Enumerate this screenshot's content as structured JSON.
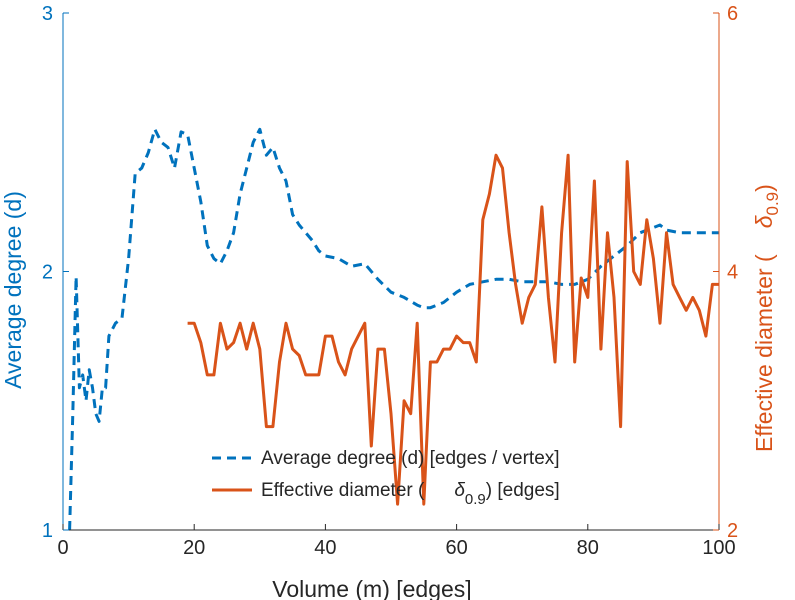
{
  "chart_data": {
    "type": "line",
    "xlabel": "Volume (m) [edges]",
    "ylabel_left": "Average degree (d)",
    "ylabel_right_prefix": "Effective diameter (",
    "ylabel_right_symbol": "δ",
    "ylabel_right_subscript": "0.9",
    "ylabel_right_suffix": ")",
    "xlim": [
      0,
      100
    ],
    "ylim_left": [
      1,
      3
    ],
    "ylim_right": [
      2,
      6
    ],
    "x_ticks": [
      "0",
      "20",
      "40",
      "60",
      "80",
      "100"
    ],
    "y_ticks_left": [
      "1",
      "2",
      "3"
    ],
    "y_ticks_right": [
      "2",
      "4",
      "6"
    ],
    "colors": {
      "left": "#0072bd",
      "right": "#d95319",
      "axis": "#262626"
    },
    "series": [
      {
        "name": "Average degree (d) [edges / vertex]",
        "axis": "left",
        "style": "dashed",
        "x": [
          1,
          1.5,
          2,
          2.5,
          3,
          3.5,
          4,
          4.5,
          5,
          5.5,
          6,
          6.5,
          7,
          8,
          9,
          10,
          11,
          12,
          13,
          14,
          15,
          16,
          17,
          18,
          19,
          20,
          21,
          22,
          23,
          24,
          25,
          26,
          27,
          28,
          29,
          30,
          31,
          32,
          33,
          34,
          35,
          36,
          37,
          38,
          39,
          40,
          42,
          44,
          46,
          48,
          50,
          52,
          54,
          55,
          56,
          57,
          58,
          59,
          60,
          62,
          64,
          66,
          68,
          70,
          72,
          74,
          76,
          78,
          80,
          82,
          84,
          86,
          88,
          90,
          91,
          92,
          94,
          96,
          98,
          100
        ],
        "values": [
          1,
          1.45,
          1.98,
          1.55,
          1.6,
          1.5,
          1.62,
          1.55,
          1.45,
          1.42,
          1.55,
          1.55,
          1.75,
          1.8,
          1.82,
          2.05,
          2.38,
          2.4,
          2.46,
          2.55,
          2.5,
          2.48,
          2.4,
          2.54,
          2.53,
          2.4,
          2.27,
          2.1,
          2.05,
          2.03,
          2.08,
          2.15,
          2.3,
          2.4,
          2.5,
          2.55,
          2.45,
          2.48,
          2.4,
          2.35,
          2.22,
          2.18,
          2.15,
          2.12,
          2.08,
          2.06,
          2.05,
          2.02,
          2.03,
          1.97,
          1.92,
          1.9,
          1.87,
          1.86,
          1.86,
          1.87,
          1.88,
          1.9,
          1.92,
          1.95,
          1.96,
          1.97,
          1.97,
          1.96,
          1.96,
          1.96,
          1.95,
          1.95,
          1.97,
          2.02,
          2.06,
          2.1,
          2.15,
          2.17,
          2.18,
          2.16,
          2.15,
          2.15,
          2.15,
          2.15
        ]
      },
      {
        "name": "Effective diameter (δ0.9) [edges]",
        "axis": "right",
        "style": "solid",
        "x": [
          19,
          20,
          21,
          22,
          23,
          24,
          25,
          26,
          27,
          28,
          29,
          30,
          31,
          32,
          33,
          34,
          35,
          36,
          37,
          38,
          39,
          40,
          41,
          42,
          43,
          44,
          45,
          46,
          47,
          48,
          49,
          50,
          51,
          52,
          53,
          54,
          55,
          56,
          57,
          58,
          59,
          60,
          61,
          62,
          63,
          64,
          65,
          66,
          67,
          68,
          69,
          70,
          71,
          72,
          73,
          74,
          75,
          76,
          77,
          78,
          79,
          80,
          81,
          82,
          83,
          84,
          85,
          86,
          87,
          88,
          89,
          90,
          91,
          92,
          93,
          94,
          95,
          96,
          97,
          98,
          99,
          100
        ],
        "values": [
          3.6,
          3.6,
          3.45,
          3.2,
          3.2,
          3.6,
          3.4,
          3.45,
          3.6,
          3.4,
          3.6,
          3.4,
          2.8,
          2.8,
          3.3,
          3.6,
          3.4,
          3.35,
          3.2,
          3.2,
          3.2,
          3.5,
          3.5,
          3.3,
          3.2,
          3.4,
          3.5,
          3.6,
          2.65,
          3.4,
          3.4,
          2.9,
          2.2,
          3.0,
          2.9,
          3.6,
          2.2,
          3.3,
          3.3,
          3.4,
          3.4,
          3.5,
          3.45,
          3.45,
          3.3,
          4.4,
          4.6,
          4.9,
          4.8,
          4.3,
          3.9,
          3.6,
          3.8,
          3.9,
          4.5,
          3.8,
          3.3,
          4.3,
          4.9,
          3.3,
          3.95,
          3.8,
          4.7,
          3.4,
          4.3,
          3.8,
          2.8,
          4.85,
          4.0,
          3.9,
          4.4,
          4.1,
          3.6,
          4.3,
          3.9,
          3.8,
          3.7,
          3.8,
          3.7,
          3.5,
          3.9,
          3.9
        ]
      }
    ],
    "legend": [
      {
        "label": "Average degree (d) [edges / vertex]",
        "style": "dashed"
      },
      {
        "label_prefix": "Effective diameter (",
        "label_symbol": "δ",
        "label_subscript": "0.9",
        "label_suffix": ") [edges]",
        "style": "solid"
      }
    ]
  }
}
